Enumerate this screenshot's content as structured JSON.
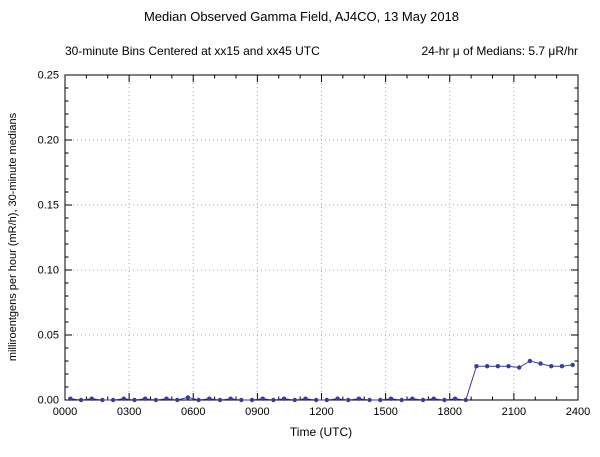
{
  "chart_data": {
    "type": "line",
    "title": "Median Observed Gamma Field, AJ4CO, 13 May 2018",
    "subtitle_left": "30-minute Bins Centered at xx15 and xx45 UTC",
    "subtitle_right": "24-hr μ of Medians: 5.7 μR/hr",
    "xlabel": "Time (UTC)",
    "ylabel": "milliroentgens per hour (mR/h), 30-minute medians",
    "x_ticks": [
      "0000",
      "0300",
      "0600",
      "0900",
      "1200",
      "1500",
      "1800",
      "2100",
      "2400"
    ],
    "x_tick_minutes": [
      0,
      180,
      360,
      540,
      720,
      900,
      1080,
      1260,
      1440
    ],
    "y_ticks": [
      "0.00",
      "0.05",
      "0.10",
      "0.15",
      "0.20",
      "0.25"
    ],
    "y_tick_values": [
      0,
      0.05,
      0.1,
      0.15,
      0.2,
      0.25
    ],
    "xlim_minutes": [
      0,
      1440
    ],
    "ylim": [
      0,
      0.25
    ],
    "grid": true,
    "legend": "none",
    "line_color": "#3a3aa0",
    "grid_color": "#aaaaaa",
    "frame_color": "#000000",
    "bin_minutes": [
      15,
      45,
      75,
      105,
      135,
      165,
      195,
      225,
      255,
      285,
      315,
      345,
      375,
      405,
      435,
      465,
      495,
      525,
      555,
      585,
      615,
      645,
      675,
      705,
      735,
      765,
      795,
      825,
      855,
      885,
      915,
      945,
      975,
      1005,
      1035,
      1065,
      1095,
      1125,
      1155,
      1185,
      1215,
      1245,
      1275,
      1305,
      1335,
      1365,
      1395,
      1425
    ],
    "values": [
      0.001,
      0,
      0.001,
      0,
      0,
      0.001,
      0,
      0.001,
      0,
      0.001,
      0,
      0.002,
      0,
      0.001,
      0,
      0.001,
      0,
      0,
      0.001,
      0,
      0.001,
      0,
      0.001,
      0,
      0,
      0.001,
      0,
      0.001,
      0,
      0,
      0.001,
      0,
      0.001,
      0,
      0.001,
      0,
      0.001,
      0,
      0.026,
      0.026,
      0.026,
      0.026,
      0.025,
      0.03,
      0.028,
      0.026,
      0.026,
      0.027
    ]
  }
}
